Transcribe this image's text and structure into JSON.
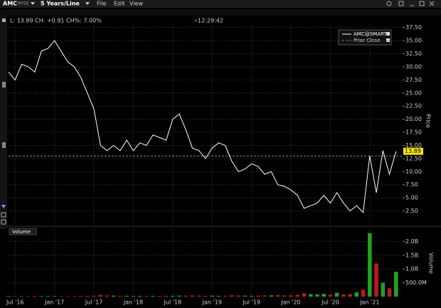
{
  "header": {
    "symbol": "AMC",
    "exchange": "NYSE",
    "period": "5 Years/Line",
    "menus": [
      "File",
      "Edit",
      "View"
    ]
  },
  "toolbar": {
    "quote": "L: 13.89 CH: +0.91 CH%: 7.00%",
    "time": "12:29:42"
  },
  "chart_data": [
    {
      "type": "line",
      "y_label": "Price",
      "x": [
        "2016-06",
        "2016-07",
        "2016-08",
        "2016-09",
        "2016-10",
        "2016-11",
        "2016-12",
        "2017-01",
        "2017-02",
        "2017-03",
        "2017-04",
        "2017-05",
        "2017-06",
        "2017-07",
        "2017-08",
        "2017-09",
        "2017-10",
        "2017-11",
        "2017-12",
        "2018-01",
        "2018-02",
        "2018-03",
        "2018-04",
        "2018-05",
        "2018-06",
        "2018-07",
        "2018-08",
        "2018-09",
        "2018-10",
        "2018-11",
        "2018-12",
        "2019-01",
        "2019-02",
        "2019-03",
        "2019-04",
        "2019-05",
        "2019-06",
        "2019-07",
        "2019-08",
        "2019-09",
        "2019-10",
        "2019-11",
        "2019-12",
        "2020-01",
        "2020-02",
        "2020-03",
        "2020-04",
        "2020-05",
        "2020-06",
        "2020-07",
        "2020-08",
        "2020-09",
        "2020-10",
        "2020-11",
        "2020-12",
        "2021-01",
        "2021-02",
        "2021-03",
        "2021-04",
        "2021-05"
      ],
      "series": [
        {
          "name": "AMC@SMART",
          "color": "#ffffff",
          "values": [
            29,
            27.5,
            30.5,
            30,
            29,
            33,
            33.5,
            35,
            33,
            31,
            30,
            28,
            25,
            22,
            15,
            14,
            15,
            14,
            16,
            14,
            15.5,
            15,
            17,
            16.5,
            16,
            20,
            21,
            18,
            14.5,
            14,
            12.5,
            14.5,
            15.5,
            15,
            12,
            10,
            10.5,
            11.5,
            11,
            9.5,
            10,
            7.5,
            7.2,
            6.5,
            5.5,
            3,
            3.5,
            4,
            5.5,
            4,
            6,
            4,
            2.5,
            3.5,
            2.2,
            13,
            6,
            14,
            9.5,
            13.89
          ]
        }
      ],
      "reference": {
        "name": "Prior Close",
        "value": 12.98,
        "color": "#888888"
      },
      "last_label_color": "#f2e600",
      "xlim": [
        "2016-06",
        "2021-06"
      ],
      "ylim": [
        0,
        38
      ],
      "yticks": [
        {
          "value": 2.5,
          "label": "2.50"
        },
        {
          "value": 5,
          "label": "5.00"
        },
        {
          "value": 7.5,
          "label": "7.50"
        },
        {
          "value": 10,
          "label": "10.00"
        },
        {
          "value": 12.5,
          "label": "12.50"
        },
        {
          "value": 15,
          "label": "15.00"
        },
        {
          "value": 17.5,
          "label": "17.50"
        },
        {
          "value": 20,
          "label": "20.00"
        },
        {
          "value": 22.5,
          "label": "22.50"
        },
        {
          "value": 25,
          "label": "25.00"
        },
        {
          "value": 27.5,
          "label": "27.50"
        },
        {
          "value": 30,
          "label": "30.00"
        },
        {
          "value": 32.5,
          "label": "32.50"
        },
        {
          "value": 35,
          "label": "35.00"
        },
        {
          "value": 37.5,
          "label": "37.50"
        }
      ],
      "grid": true
    },
    {
      "type": "bar",
      "title": "Volume",
      "y_label": "Volume",
      "x": [
        "2016-06",
        "2016-07",
        "2016-08",
        "2016-09",
        "2016-10",
        "2016-11",
        "2016-12",
        "2017-01",
        "2017-02",
        "2017-03",
        "2017-04",
        "2017-05",
        "2017-06",
        "2017-07",
        "2017-08",
        "2017-09",
        "2017-10",
        "2017-11",
        "2017-12",
        "2018-01",
        "2018-02",
        "2018-03",
        "2018-04",
        "2018-05",
        "2018-06",
        "2018-07",
        "2018-08",
        "2018-09",
        "2018-10",
        "2018-11",
        "2018-12",
        "2019-01",
        "2019-02",
        "2019-03",
        "2019-04",
        "2019-05",
        "2019-06",
        "2019-07",
        "2019-08",
        "2019-09",
        "2019-10",
        "2019-11",
        "2019-12",
        "2020-01",
        "2020-02",
        "2020-03",
        "2020-04",
        "2020-05",
        "2020-06",
        "2020-07",
        "2020-08",
        "2020-09",
        "2020-10",
        "2020-11",
        "2020-12",
        "2021-01",
        "2021-02",
        "2021-03",
        "2021-04",
        "2021-05"
      ],
      "values": [
        20000000,
        15000000,
        15000000,
        18000000,
        25000000,
        20000000,
        22000000,
        20000000,
        18000000,
        20000000,
        18000000,
        25000000,
        30000000,
        35000000,
        60000000,
        40000000,
        35000000,
        30000000,
        30000000,
        30000000,
        25000000,
        25000000,
        28000000,
        25000000,
        30000000,
        30000000,
        35000000,
        35000000,
        40000000,
        35000000,
        30000000,
        35000000,
        30000000,
        30000000,
        45000000,
        40000000,
        35000000,
        30000000,
        35000000,
        40000000,
        45000000,
        50000000,
        40000000,
        45000000,
        60000000,
        120000000,
        90000000,
        80000000,
        100000000,
        70000000,
        140000000,
        80000000,
        90000000,
        150000000,
        250000000,
        2300000000,
        1200000000,
        500000000,
        300000000,
        900000000
      ],
      "up_color": "#1fa31f",
      "down_color": "#c01818",
      "xlim": [
        "2016-06",
        "2021-06"
      ],
      "xticks": [
        {
          "value": "2016-07",
          "label": "Jul '16"
        },
        {
          "value": "2017-01",
          "label": "Jan '17"
        },
        {
          "value": "2017-07",
          "label": "Jul '17"
        },
        {
          "value": "2018-01",
          "label": "Jan '18"
        },
        {
          "value": "2018-07",
          "label": "Jul '18"
        },
        {
          "value": "2019-01",
          "label": "Jan '19"
        },
        {
          "value": "2019-07",
          "label": "Jul '19"
        },
        {
          "value": "2020-01",
          "label": "Jan '20"
        },
        {
          "value": "2020-07",
          "label": "Jul '20"
        },
        {
          "value": "2021-01",
          "label": "Jan '21"
        }
      ],
      "ylim": [
        0,
        2500000000
      ],
      "yticks": [
        {
          "value": 500000000,
          "label": "500.0M"
        },
        {
          "value": 1000000000,
          "label": "1.0B"
        },
        {
          "value": 1500000000,
          "label": "1.5B"
        },
        {
          "value": 2000000000,
          "label": "2.0B"
        }
      ],
      "grid": true
    }
  ]
}
